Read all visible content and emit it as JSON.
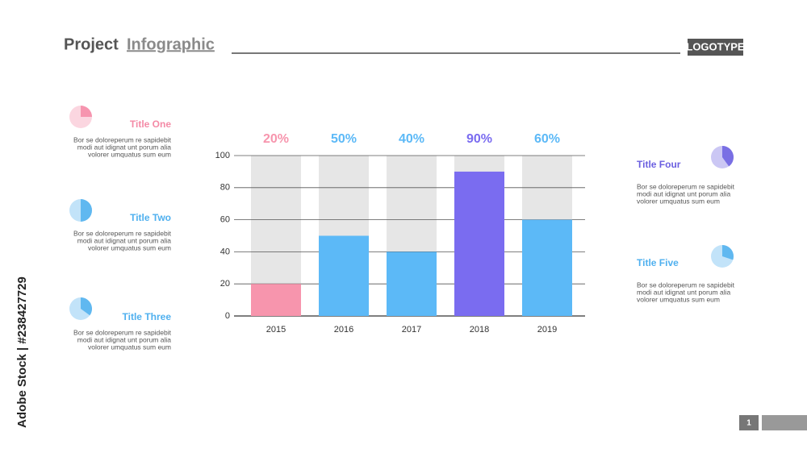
{
  "header": {
    "title_words": [
      "Project",
      "Infographic"
    ],
    "logotype": "LOGOTYPE"
  },
  "watermark": "Adobe Stock | #238427729",
  "page_number": "1",
  "left_items": [
    {
      "title": "Title One",
      "color": "#f48aa6",
      "lines": [
        "Bor se doloreperum re sapidebit",
        "modi aut idignat unt porum alia",
        "volorer umquatus sum eum"
      ]
    },
    {
      "title": "Title Two",
      "color": "#4fb0ef",
      "lines": [
        "Bor se doloreperum re sapidebit",
        "modi aut idignat unt porum alia",
        "volorer umquatus sum eum"
      ]
    },
    {
      "title": "Title Three",
      "color": "#4fb0ef",
      "lines": [
        "Bor se doloreperum re sapidebit",
        "modi aut idignat unt porum alia",
        "volorer umquatus sum eum"
      ]
    }
  ],
  "right_items": [
    {
      "title": "Title Four",
      "color": "#6b5fe0",
      "lines": [
        "Bor se doloreperum re sapidebit",
        "modi aut idignat unt porum alia",
        "volorer umquatus sum eum"
      ]
    },
    {
      "title": "Title Five",
      "color": "#4fb0ef",
      "lines": [
        "Bor se doloreperum re sapidebit",
        "modi aut idignat unt porum alia",
        "volorer umquatus sum eum"
      ]
    }
  ],
  "chart_data": {
    "type": "bar",
    "categories": [
      "2015",
      "2016",
      "2017",
      "2018",
      "2019"
    ],
    "values": [
      20,
      50,
      40,
      90,
      60
    ],
    "value_labels": [
      "20%",
      "50%",
      "40%",
      "90%",
      "60%"
    ],
    "colors": [
      "#f795ad",
      "#5cb9f7",
      "#5cb9f7",
      "#7a6cf0",
      "#5cb9f7"
    ],
    "ylim": [
      0,
      100
    ],
    "yticks": [
      0,
      20,
      40,
      60,
      80,
      100
    ],
    "grid": true
  }
}
